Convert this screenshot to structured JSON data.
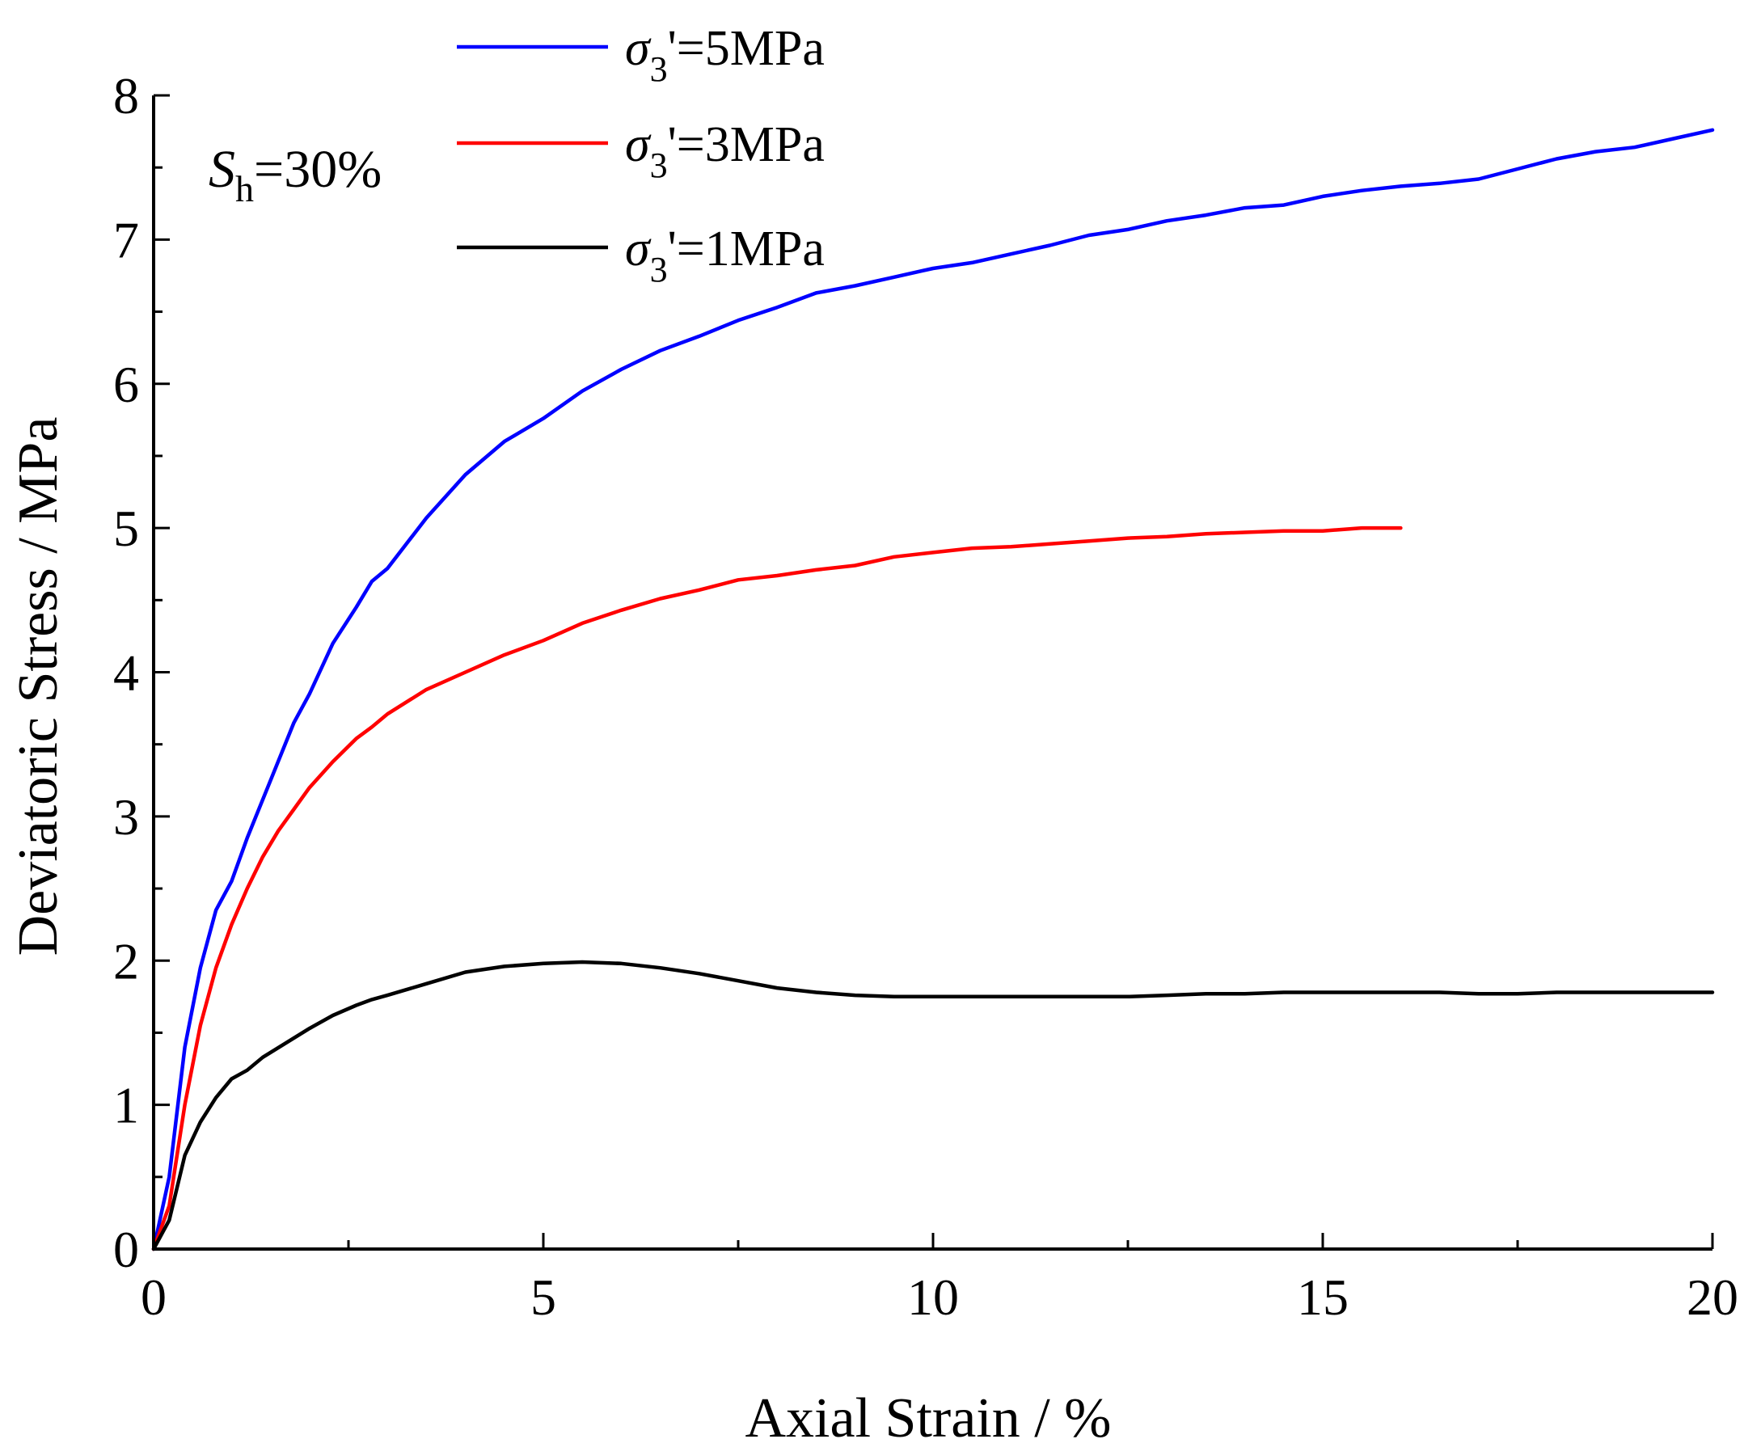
{
  "chart_data": {
    "type": "line",
    "title": "",
    "xlabel": "Axial Strain / %",
    "ylabel": "Deviatoric Stress / MPa",
    "xlim": [
      0,
      20
    ],
    "ylim": [
      0,
      8
    ],
    "xticks": [
      0,
      5,
      10,
      15,
      20
    ],
    "yticks": [
      0,
      1,
      2,
      3,
      4,
      5,
      6,
      7,
      8
    ],
    "x_minor_step": 2.5,
    "y_minor_step": 0.5,
    "grid": false,
    "legend_position": "top-center",
    "annotation": {
      "symbol": "S",
      "subscript": "h",
      "text": "=30%"
    },
    "series": [
      {
        "name": "σ3'=5MPa",
        "label_symbol": "σ",
        "label_subscript": "3",
        "label_rest": "'=5MPa",
        "color": "#0000ff",
        "points": [
          [
            0,
            0
          ],
          [
            0.2,
            0.5
          ],
          [
            0.4,
            1.4
          ],
          [
            0.6,
            1.95
          ],
          [
            0.8,
            2.35
          ],
          [
            1.0,
            2.55
          ],
          [
            1.2,
            2.85
          ],
          [
            1.5,
            3.25
          ],
          [
            1.8,
            3.65
          ],
          [
            2.0,
            3.85
          ],
          [
            2.3,
            4.2
          ],
          [
            2.6,
            4.45
          ],
          [
            2.8,
            4.63
          ],
          [
            3.0,
            4.72
          ],
          [
            3.5,
            5.07
          ],
          [
            4.0,
            5.37
          ],
          [
            4.5,
            5.6
          ],
          [
            5.0,
            5.76
          ],
          [
            5.5,
            5.95
          ],
          [
            6.0,
            6.1
          ],
          [
            6.5,
            6.23
          ],
          [
            7.0,
            6.33
          ],
          [
            7.5,
            6.44
          ],
          [
            8.0,
            6.53
          ],
          [
            8.5,
            6.63
          ],
          [
            9.0,
            6.68
          ],
          [
            9.5,
            6.74
          ],
          [
            10.0,
            6.8
          ],
          [
            10.5,
            6.84
          ],
          [
            11.0,
            6.9
          ],
          [
            11.5,
            6.96
          ],
          [
            12.0,
            7.03
          ],
          [
            12.5,
            7.07
          ],
          [
            13.0,
            7.13
          ],
          [
            13.5,
            7.17
          ],
          [
            14.0,
            7.22
          ],
          [
            14.5,
            7.24
          ],
          [
            15.0,
            7.3
          ],
          [
            15.5,
            7.34
          ],
          [
            16.0,
            7.37
          ],
          [
            16.5,
            7.39
          ],
          [
            17.0,
            7.42
          ],
          [
            17.5,
            7.49
          ],
          [
            18.0,
            7.56
          ],
          [
            18.5,
            7.61
          ],
          [
            19.0,
            7.64
          ],
          [
            19.5,
            7.7
          ],
          [
            20.0,
            7.76
          ]
        ]
      },
      {
        "name": "σ3'=3MPa",
        "label_symbol": "σ",
        "label_subscript": "3",
        "label_rest": "'=3MPa",
        "color": "#ff0000",
        "points": [
          [
            0,
            0
          ],
          [
            0.2,
            0.3
          ],
          [
            0.4,
            1.0
          ],
          [
            0.6,
            1.55
          ],
          [
            0.8,
            1.95
          ],
          [
            1.0,
            2.25
          ],
          [
            1.2,
            2.5
          ],
          [
            1.4,
            2.72
          ],
          [
            1.6,
            2.9
          ],
          [
            1.8,
            3.05
          ],
          [
            2.0,
            3.2
          ],
          [
            2.3,
            3.38
          ],
          [
            2.6,
            3.54
          ],
          [
            2.8,
            3.62
          ],
          [
            3.0,
            3.71
          ],
          [
            3.5,
            3.88
          ],
          [
            4.0,
            4.0
          ],
          [
            4.5,
            4.12
          ],
          [
            5.0,
            4.22
          ],
          [
            5.5,
            4.34
          ],
          [
            6.0,
            4.43
          ],
          [
            6.5,
            4.51
          ],
          [
            7.0,
            4.57
          ],
          [
            7.5,
            4.64
          ],
          [
            8.0,
            4.67
          ],
          [
            8.5,
            4.71
          ],
          [
            9.0,
            4.74
          ],
          [
            9.5,
            4.8
          ],
          [
            10.0,
            4.83
          ],
          [
            10.5,
            4.86
          ],
          [
            11.0,
            4.87
          ],
          [
            11.5,
            4.89
          ],
          [
            12.0,
            4.91
          ],
          [
            12.5,
            4.93
          ],
          [
            13.0,
            4.94
          ],
          [
            13.5,
            4.96
          ],
          [
            14.0,
            4.97
          ],
          [
            14.5,
            4.98
          ],
          [
            15.0,
            4.98
          ],
          [
            15.5,
            5.0
          ],
          [
            16.0,
            5.0
          ]
        ]
      },
      {
        "name": "σ3'=1MPa",
        "label_symbol": "σ",
        "label_subscript": "3",
        "label_rest": "'=1MPa",
        "color": "#000000",
        "points": [
          [
            0,
            0
          ],
          [
            0.2,
            0.2
          ],
          [
            0.4,
            0.65
          ],
          [
            0.6,
            0.88
          ],
          [
            0.8,
            1.05
          ],
          [
            1.0,
            1.18
          ],
          [
            1.2,
            1.24
          ],
          [
            1.4,
            1.33
          ],
          [
            1.7,
            1.43
          ],
          [
            2.0,
            1.53
          ],
          [
            2.3,
            1.62
          ],
          [
            2.6,
            1.69
          ],
          [
            2.8,
            1.73
          ],
          [
            3.0,
            1.76
          ],
          [
            3.5,
            1.84
          ],
          [
            4.0,
            1.92
          ],
          [
            4.5,
            1.96
          ],
          [
            5.0,
            1.98
          ],
          [
            5.5,
            1.99
          ],
          [
            6.0,
            1.98
          ],
          [
            6.5,
            1.95
          ],
          [
            7.0,
            1.91
          ],
          [
            7.5,
            1.86
          ],
          [
            8.0,
            1.81
          ],
          [
            8.5,
            1.78
          ],
          [
            9.0,
            1.76
          ],
          [
            9.5,
            1.75
          ],
          [
            10.0,
            1.75
          ],
          [
            10.5,
            1.75
          ],
          [
            11.0,
            1.75
          ],
          [
            11.5,
            1.75
          ],
          [
            12.0,
            1.75
          ],
          [
            12.5,
            1.75
          ],
          [
            13.0,
            1.76
          ],
          [
            13.5,
            1.77
          ],
          [
            14.0,
            1.77
          ],
          [
            14.5,
            1.78
          ],
          [
            15.0,
            1.78
          ],
          [
            15.5,
            1.78
          ],
          [
            16.0,
            1.78
          ],
          [
            16.5,
            1.78
          ],
          [
            17.0,
            1.77
          ],
          [
            17.5,
            1.77
          ],
          [
            18.0,
            1.78
          ],
          [
            18.5,
            1.78
          ],
          [
            19.0,
            1.78
          ],
          [
            19.5,
            1.78
          ],
          [
            20.0,
            1.78
          ]
        ]
      }
    ]
  }
}
